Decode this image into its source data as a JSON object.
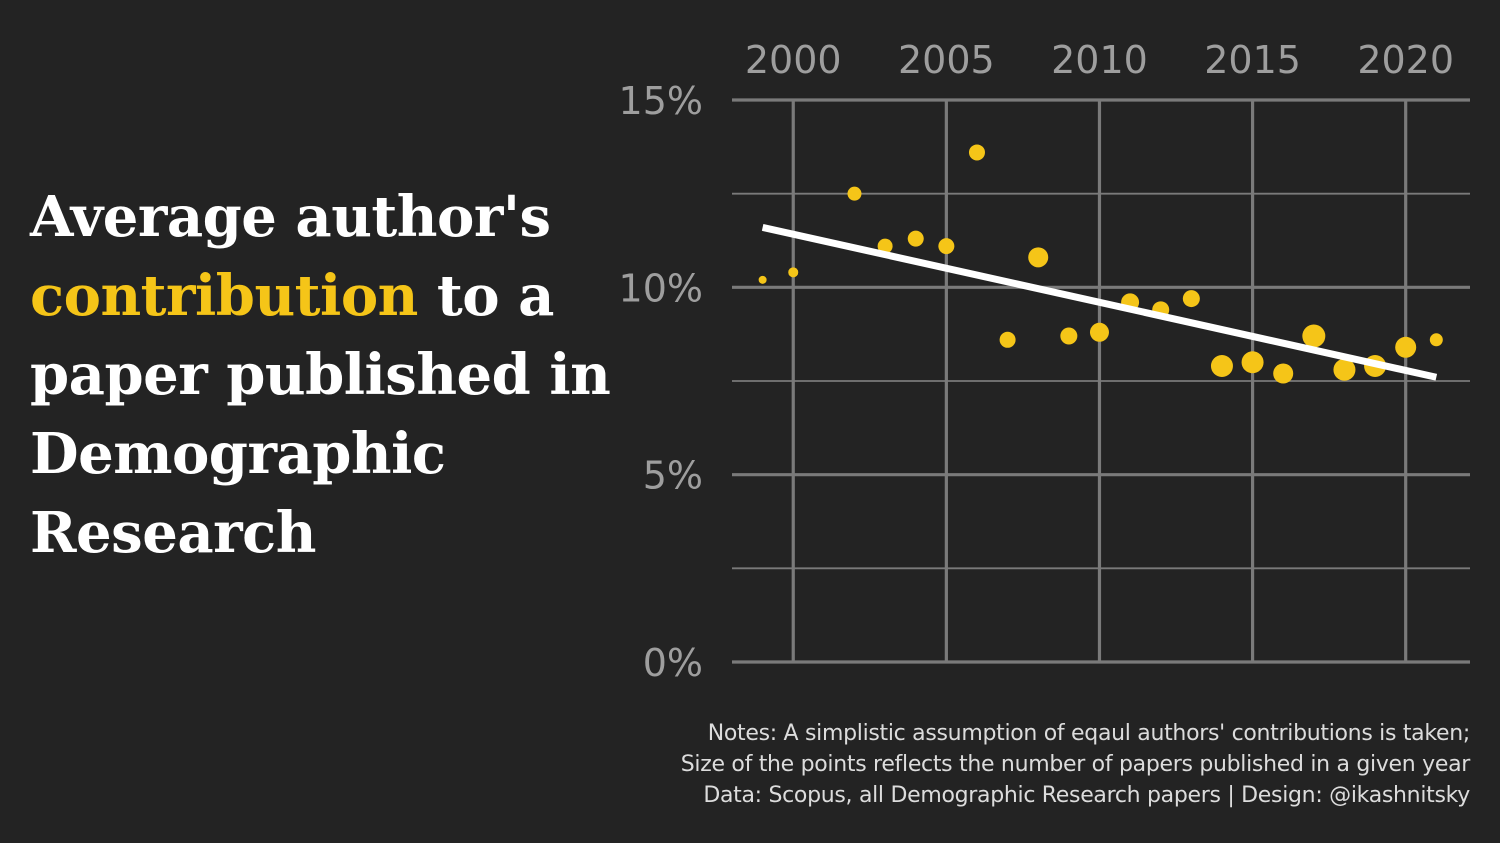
{
  "title": {
    "part1": "Average author's",
    "highlight": "contribution",
    "part2": "to a paper published in Demographic Research"
  },
  "colors": {
    "background": "#232323",
    "points": "#f5c518",
    "trend": "#ffffff",
    "grid": "#7a7a7a"
  },
  "chart_data": {
    "type": "scatter",
    "x": [
      1999,
      2000,
      2002,
      2003,
      2004,
      2005,
      2006,
      2007,
      2008,
      2009,
      2010,
      2011,
      2012,
      2013,
      2014,
      2015,
      2016,
      2017,
      2018,
      2019,
      2020,
      2021
    ],
    "y": [
      10.2,
      10.4,
      12.5,
      11.1,
      11.3,
      11.1,
      13.6,
      8.6,
      10.8,
      8.7,
      8.8,
      9.6,
      9.4,
      9.7,
      7.9,
      8.0,
      7.7,
      8.7,
      7.8,
      7.9,
      8.4,
      8.6
    ],
    "point_size": [
      4,
      5,
      7,
      7.5,
      8,
      8,
      8,
      8,
      10,
      8.5,
      9.5,
      9,
      8.5,
      8.5,
      11,
      11,
      10,
      11.5,
      11,
      11,
      10.5,
      6.5
    ],
    "trend": {
      "x": [
        1999,
        2021
      ],
      "y": [
        11.6,
        7.6
      ]
    },
    "x_ticks": [
      "2000",
      "2005",
      "2010",
      "2015",
      "2020"
    ],
    "x_tick_values": [
      2000,
      2005,
      2010,
      2015,
      2020
    ],
    "y_ticks": [
      "0%",
      "5%",
      "10%",
      "15%"
    ],
    "y_tick_values": [
      0,
      5,
      10,
      15
    ],
    "y_minor_values": [
      2.5,
      7.5,
      12.5
    ],
    "xlim": [
      1998.0,
      2022.1
    ],
    "ylim": [
      0,
      15
    ],
    "x_axis_position": "top",
    "grid": true,
    "legend": "none",
    "units": "%"
  },
  "notes": {
    "line1": "Notes: A simplistic assumption of eqaul authors' contributions is taken;",
    "line2": "Size of the points reflects the number of papers published in a given year",
    "line3": "Data: Scopus, all Demographic Research papers | Design: @ikashnitsky"
  }
}
